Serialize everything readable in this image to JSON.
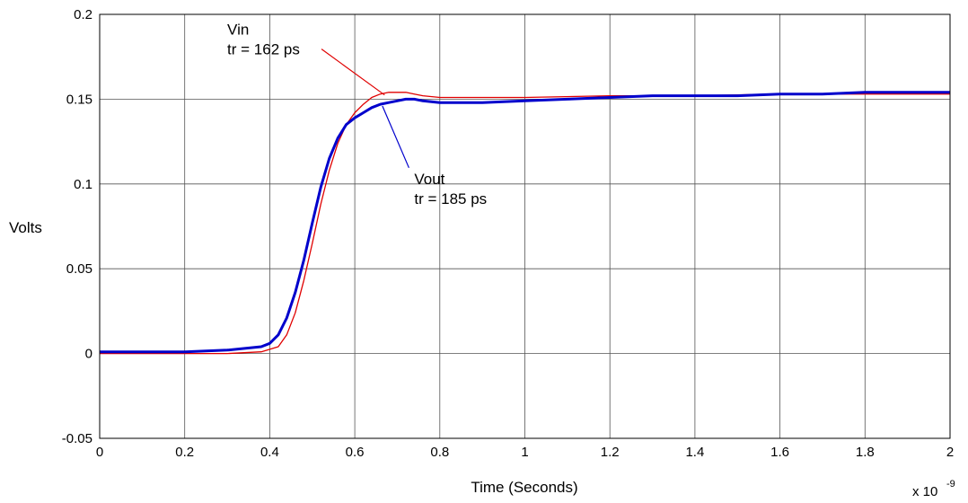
{
  "chart_data": {
    "type": "line",
    "title": "",
    "xlabel": "Time (Seconds)",
    "ylabel": "Volts",
    "x_multiplier": "x 10",
    "x_multiplier_exponent": "-9",
    "xlim": [
      0,
      2
    ],
    "ylim": [
      -0.05,
      0.2
    ],
    "grid": true,
    "x_ticks": [
      0,
      0.2,
      0.4,
      0.6,
      0.8,
      1,
      1.2,
      1.4,
      1.6,
      1.8,
      2
    ],
    "x_tick_labels": [
      "0",
      "0.2",
      "0.4",
      "0.6",
      "0.8",
      "1",
      "1.2",
      "1.4",
      "1.6",
      "1.8",
      "2"
    ],
    "y_ticks": [
      -0.05,
      0,
      0.05,
      0.1,
      0.15,
      0.2
    ],
    "y_tick_labels": [
      "-0.05",
      "0",
      "0.05",
      "0.1",
      "0.15",
      "0.2"
    ],
    "series": [
      {
        "name": "Vin",
        "color": "#e00000",
        "x": [
          0,
          0.1,
          0.2,
          0.3,
          0.38,
          0.42,
          0.44,
          0.46,
          0.48,
          0.5,
          0.52,
          0.54,
          0.56,
          0.58,
          0.6,
          0.62,
          0.64,
          0.66,
          0.68,
          0.7,
          0.72,
          0.74,
          0.76,
          0.8,
          0.9,
          1,
          1.2,
          1.4,
          1.6,
          1.8,
          2
        ],
        "y": [
          0,
          0,
          0,
          0,
          0.001,
          0.004,
          0.011,
          0.024,
          0.043,
          0.065,
          0.088,
          0.108,
          0.124,
          0.135,
          0.142,
          0.147,
          0.151,
          0.153,
          0.154,
          0.154,
          0.154,
          0.153,
          0.152,
          0.151,
          0.151,
          0.151,
          0.152,
          0.152,
          0.153,
          0.153,
          0.153
        ]
      },
      {
        "name": "Vout",
        "color": "#0000cc",
        "x": [
          0,
          0.1,
          0.2,
          0.3,
          0.38,
          0.4,
          0.42,
          0.44,
          0.46,
          0.48,
          0.5,
          0.52,
          0.54,
          0.56,
          0.58,
          0.6,
          0.62,
          0.64,
          0.66,
          0.68,
          0.7,
          0.72,
          0.74,
          0.76,
          0.8,
          0.85,
          0.9,
          1,
          1.1,
          1.2,
          1.3,
          1.4,
          1.5,
          1.6,
          1.7,
          1.8,
          1.9,
          2
        ],
        "y": [
          0.001,
          0.001,
          0.001,
          0.002,
          0.004,
          0.006,
          0.011,
          0.021,
          0.036,
          0.055,
          0.077,
          0.098,
          0.115,
          0.127,
          0.135,
          0.139,
          0.142,
          0.145,
          0.147,
          0.148,
          0.149,
          0.15,
          0.15,
          0.149,
          0.148,
          0.148,
          0.148,
          0.149,
          0.15,
          0.151,
          0.152,
          0.152,
          0.152,
          0.153,
          0.153,
          0.154,
          0.154,
          0.154
        ]
      }
    ],
    "annotations": [
      {
        "series": "Vin",
        "line1": "Vin",
        "line2": "tr = 162 ps",
        "label_x": 0.3,
        "label_y": 0.188,
        "arrow_x": 0.67,
        "arrow_y": 0.1525
      },
      {
        "series": "Vout",
        "line1": "Vout",
        "line2": "tr = 185 ps",
        "label_x": 0.74,
        "label_y": 0.1,
        "arrow_x": 0.665,
        "arrow_y": 0.146
      }
    ]
  }
}
